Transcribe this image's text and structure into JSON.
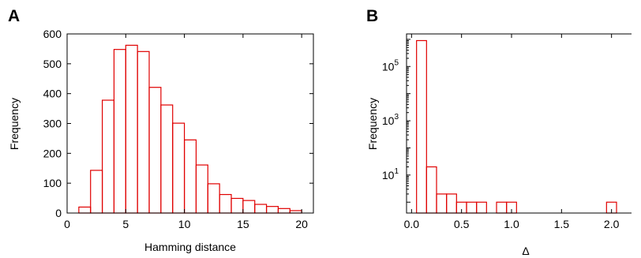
{
  "chart_data": [
    {
      "panel": "A",
      "type": "bar",
      "title": "",
      "xlabel": "Hamming distance",
      "ylabel": "Frequency",
      "xlim": [
        0,
        21
      ],
      "ylim": [
        0,
        600
      ],
      "xticks": [
        0,
        5,
        10,
        15,
        20
      ],
      "yticks": [
        0,
        100,
        200,
        300,
        400,
        500,
        600
      ],
      "bin_width": 1,
      "bin_starts": [
        1,
        2,
        3,
        4,
        5,
        6,
        7,
        8,
        9,
        10,
        11,
        12,
        13,
        14,
        15,
        16,
        17,
        18,
        19
      ],
      "values": [
        20,
        143,
        378,
        548,
        562,
        541,
        421,
        362,
        301,
        245,
        161,
        98,
        62,
        49,
        42,
        29,
        22,
        15,
        8
      ],
      "color": "#e00000"
    },
    {
      "panel": "B",
      "type": "bar",
      "title": "",
      "xlabel": "Δ",
      "ylabel": "Frequency",
      "yscale": "log",
      "xlim": [
        -0.05,
        2.2
      ],
      "ylim_log10": [
        -0.4,
        6.2
      ],
      "xticks": [
        "0.0",
        "0.5",
        "1.0",
        "1.5",
        "2.0"
      ],
      "yticks": [
        {
          "base": "10",
          "exp": "1",
          "value": 10
        },
        {
          "base": "10",
          "exp": "3",
          "value": 1000
        },
        {
          "base": "10",
          "exp": "5",
          "value": 100000
        }
      ],
      "bin_width": 0.1,
      "bin_starts": [
        0.05,
        0.15,
        0.25,
        0.35,
        0.45,
        0.55,
        0.65,
        0.85,
        0.95,
        1.95
      ],
      "values": [
        900000,
        20,
        2,
        2,
        1,
        1,
        1,
        1,
        1,
        1
      ],
      "color": "#e00000"
    }
  ]
}
